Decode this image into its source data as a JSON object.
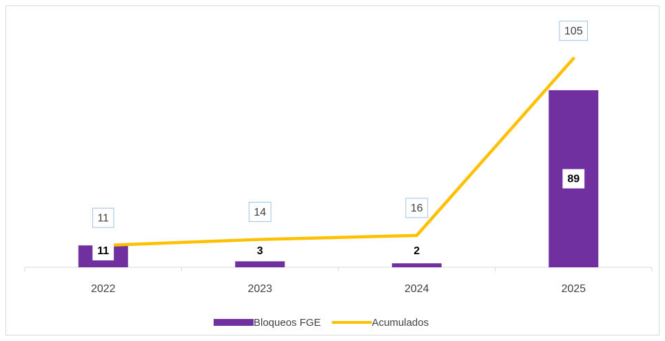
{
  "chart_data": {
    "type": "bar",
    "categories": [
      "2022",
      "2023",
      "2024",
      "2025"
    ],
    "series": [
      {
        "name": "Bloqueos FGE",
        "type": "bar",
        "color": "#7030a0",
        "values": [
          11,
          3,
          2,
          89
        ]
      },
      {
        "name": "Acumulados",
        "type": "line",
        "color": "#ffc000",
        "values": [
          11,
          14,
          16,
          105
        ]
      }
    ],
    "ylim": [
      0,
      120
    ],
    "legend": "bottom"
  }
}
